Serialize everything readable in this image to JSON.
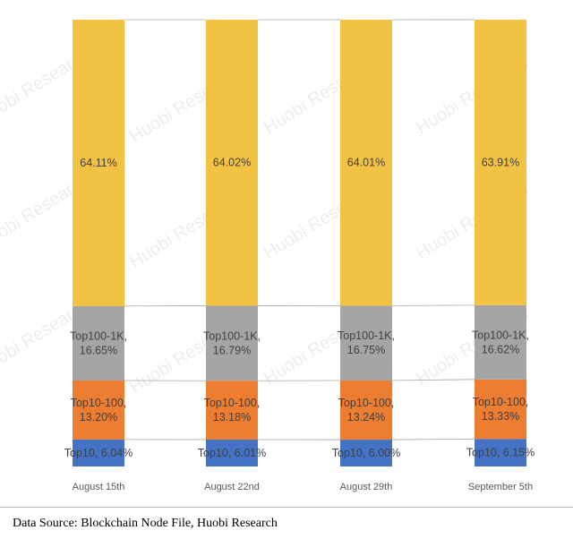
{
  "chart_data": {
    "type": "bar",
    "stacked": true,
    "normalized": true,
    "categories": [
      "August 15th",
      "August 22nd",
      "August 29th",
      "September 5th"
    ],
    "series": [
      {
        "key": "top10",
        "color": "#4472C4",
        "values": [
          6.04,
          6.01,
          6.0,
          6.15
        ],
        "labels": [
          [
            "Top10, 6.04%"
          ],
          [
            "Top10, 6.01%"
          ],
          [
            "Top10, 6.00%"
          ],
          [
            "Top10, 6.15%"
          ]
        ]
      },
      {
        "key": "top10_100",
        "color": "#ED7D31",
        "values": [
          13.2,
          13.18,
          13.24,
          13.33
        ],
        "labels": [
          [
            "Top10-100,",
            "13.20%"
          ],
          [
            "Top10-100,",
            "13.18%"
          ],
          [
            "Top10-100,",
            "13.24%"
          ],
          [
            "Top10-100,",
            "13.33%"
          ]
        ]
      },
      {
        "key": "top100_1k",
        "color": "#A5A5A5",
        "values": [
          16.65,
          16.79,
          16.75,
          16.62
        ],
        "labels": [
          [
            "Top100-1K,",
            "16.65%"
          ],
          [
            "Top100-1K,",
            "16.79%"
          ],
          [
            "Top100-1K,",
            "16.75%"
          ],
          [
            "Top100-1K,",
            "16.62%"
          ]
        ]
      },
      {
        "key": "rest",
        "color": "#F2C243",
        "values": [
          64.11,
          64.02,
          64.01,
          63.91
        ],
        "labels": [
          [
            "64.11%"
          ],
          [
            "64.02%"
          ],
          [
            "64.01%"
          ],
          [
            "63.91%"
          ]
        ]
      }
    ],
    "ylim": [
      0,
      100
    ],
    "series_lines": true,
    "legend": "none",
    "grid": false,
    "watermark": "Huobi Research"
  },
  "source_text": "Data Source: Blockchain Node File, Huobi Research"
}
